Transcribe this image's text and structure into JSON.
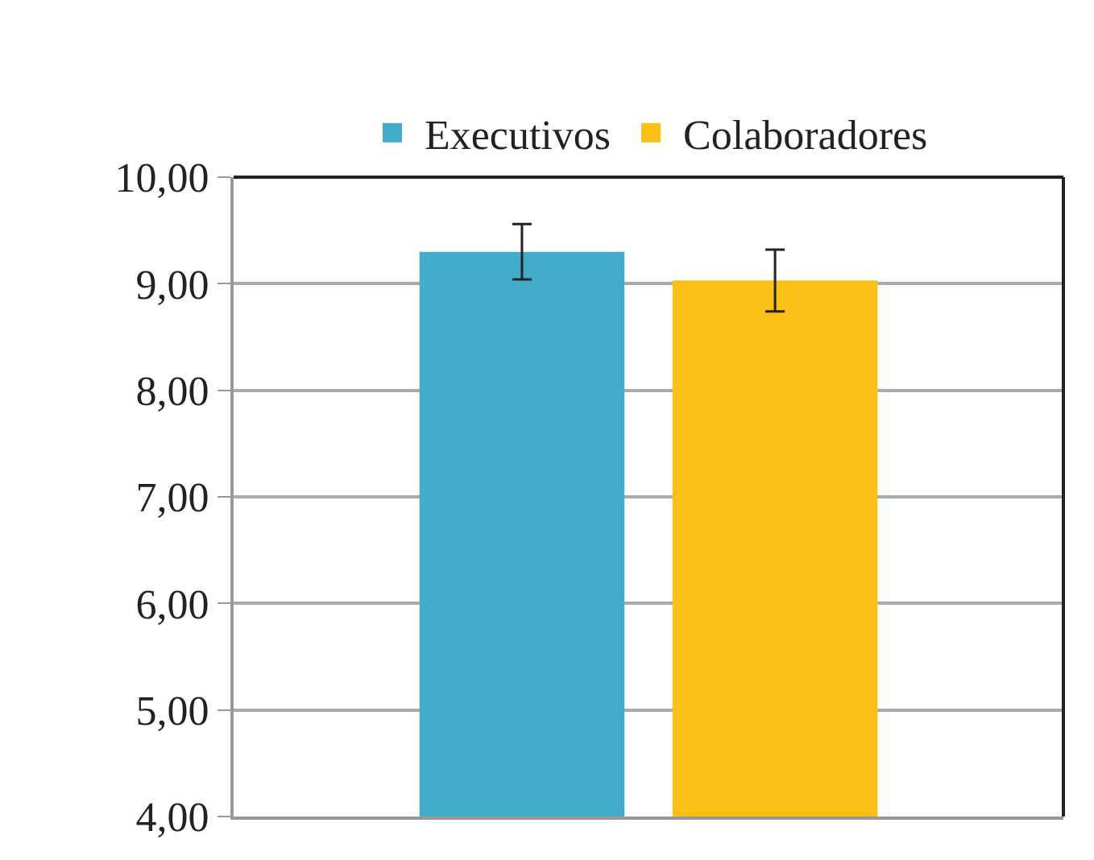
{
  "chart_data": {
    "type": "bar",
    "categories": [
      null
    ],
    "series": [
      {
        "name": "Executivos",
        "color": "#43acc8",
        "values": [
          9.3
        ],
        "errors": [
          0.26
        ]
      },
      {
        "name": "Colaboradores",
        "color": "#fbc015",
        "values": [
          9.03
        ],
        "errors": [
          0.29
        ]
      }
    ],
    "ylim": [
      4,
      10
    ],
    "yticks": [
      {
        "value": 4,
        "label": "4,00"
      },
      {
        "value": 5,
        "label": "5,00"
      },
      {
        "value": 6,
        "label": "6,00"
      },
      {
        "value": 7,
        "label": "7,00"
      },
      {
        "value": 8,
        "label": "8,00"
      },
      {
        "value": 9,
        "label": "9,00"
      },
      {
        "value": 10,
        "label": "10,00"
      }
    ],
    "grid": "y",
    "legend": "top"
  }
}
